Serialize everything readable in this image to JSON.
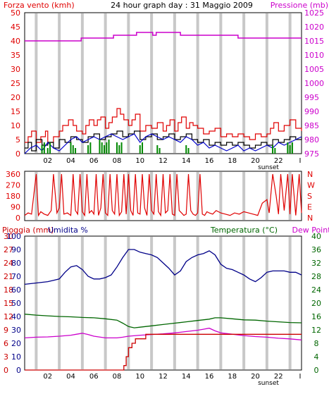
{
  "page": {
    "bg": "#ffffff",
    "plot_bg": "#ffffff",
    "frame_color": "#000000",
    "vgrid_color": "#c8c8c8"
  },
  "chart_data": [
    {
      "id": "wind-pressure",
      "type": "line",
      "title": "24 hour graph day : 31 Maggio 2009",
      "left_label": "Forza vento (kmh)",
      "right_label": "Pressione (mb)",
      "left_color": "#e00000",
      "right_color": "#cc00cc",
      "left_ylim": [
        0,
        50
      ],
      "left_ticks": [
        "0",
        "5",
        "10",
        "15",
        "20",
        "25",
        "30",
        "35",
        "40",
        "45",
        "50"
      ],
      "right_ylim": [
        975,
        1025
      ],
      "right_ticks": [
        "975",
        "980",
        "985",
        "990",
        "995",
        "1000",
        "1005",
        "1010",
        "1015",
        "1020",
        "1025"
      ],
      "x_ticks": [
        "02",
        "04",
        "06",
        "08",
        "10",
        "12",
        "14",
        "16",
        "18",
        "20",
        "22",
        "I"
      ],
      "x_annotation": "sunset",
      "grid": "vertical",
      "series": [
        {
          "key": "gust",
          "axis": "left",
          "color": "#e00000",
          "style": "step",
          "x": [
            0,
            0.3,
            0.6,
            1.0,
            1.4,
            1.8,
            2.0,
            2.5,
            3.0,
            3.3,
            3.8,
            4.2,
            4.5,
            5.0,
            5.3,
            5.6,
            6.0,
            6.3,
            6.6,
            7.0,
            7.3,
            7.6,
            8.0,
            8.3,
            8.6,
            9.0,
            9.3,
            9.6,
            10.0,
            10.5,
            11.0,
            11.5,
            12.0,
            12.3,
            12.6,
            13.0,
            13.3,
            13.6,
            14.0,
            14.3,
            14.6,
            15.0,
            15.5,
            16.0,
            16.5,
            17.0,
            17.5,
            18.0,
            18.5,
            19.0,
            19.5,
            20.0,
            20.5,
            21.0,
            21.3,
            21.6,
            22.0,
            22.5,
            23.0,
            23.5,
            24.0
          ],
          "y": [
            4,
            6,
            8,
            4,
            6,
            8,
            4,
            6,
            8,
            10,
            12,
            10,
            8,
            7,
            10,
            12,
            10,
            12,
            13,
            9,
            11,
            13,
            16,
            14,
            12,
            10,
            12,
            14,
            8,
            10,
            9,
            11,
            8,
            10,
            12,
            8,
            11,
            13,
            9,
            11,
            10,
            9,
            7,
            8,
            9,
            6,
            7,
            6,
            7,
            6,
            5,
            7,
            6,
            7,
            9,
            11,
            8,
            10,
            12,
            9,
            8
          ]
        },
        {
          "key": "wind",
          "axis": "left",
          "color": "#000000",
          "style": "step",
          "x": [
            0,
            0.3,
            0.6,
            1.0,
            1.5,
            2.0,
            2.5,
            3.0,
            3.5,
            4.0,
            4.5,
            5.0,
            5.5,
            6.0,
            6.5,
            7.0,
            7.5,
            8.0,
            8.5,
            9.0,
            9.5,
            10.0,
            10.5,
            11.0,
            11.5,
            12.0,
            12.5,
            13.0,
            13.5,
            14.0,
            14.5,
            15.0,
            15.5,
            16.0,
            16.5,
            17.0,
            17.5,
            18.0,
            18.5,
            19.0,
            19.5,
            20.0,
            20.5,
            21.0,
            21.5,
            22.0,
            22.5,
            23.0,
            23.5,
            24.0
          ],
          "y": [
            2,
            4,
            1,
            5,
            3,
            4,
            2,
            5,
            4,
            6,
            5,
            4,
            6,
            7,
            5,
            6,
            7,
            8,
            6,
            7,
            8,
            5,
            6,
            7,
            5,
            6,
            7,
            5,
            6,
            7,
            5,
            4,
            5,
            3,
            4,
            3,
            4,
            3,
            4,
            3,
            2,
            3,
            4,
            3,
            5,
            4,
            5,
            6,
            5,
            6
          ]
        },
        {
          "key": "avg",
          "axis": "left",
          "color": "#0000cc",
          "style": "line",
          "x": [
            0,
            0.5,
            1.0,
            1.5,
            2.0,
            2.5,
            3.0,
            3.5,
            4.0,
            4.5,
            5.0,
            5.5,
            6.0,
            6.5,
            7.0,
            7.5,
            8.0,
            8.5,
            9.0,
            9.5,
            10.0,
            10.5,
            11.0,
            11.5,
            12.0,
            12.5,
            13.0,
            13.5,
            14.0,
            14.5,
            15.0,
            15.5,
            16.0,
            16.5,
            17.0,
            17.5,
            18.0,
            18.5,
            19.0,
            19.5,
            20.0,
            20.5,
            21.0,
            21.5,
            22.0,
            22.5,
            23.0,
            23.5,
            24.0
          ],
          "y": [
            0,
            2,
            3,
            1,
            4,
            2,
            1,
            3,
            5,
            6,
            4,
            5,
            6,
            5,
            6,
            7,
            6,
            5,
            6,
            7,
            4,
            6,
            7,
            6,
            5,
            6,
            5,
            4,
            6,
            5,
            3,
            4,
            2,
            3,
            2,
            1,
            2,
            3,
            1,
            2,
            1,
            2,
            3,
            2,
            4,
            3,
            4,
            5,
            6
          ]
        },
        {
          "key": "calm",
          "axis": "left",
          "color": "#008800",
          "style": "bars",
          "x": [
            1.5,
            1.7,
            2.0,
            2.2,
            4.0,
            4.2,
            4.4,
            5.5,
            5.7,
            6.5,
            6.7,
            6.9,
            7.1,
            7.3,
            8.0,
            8.2,
            8.4,
            10.0,
            10.2,
            11.5,
            11.7,
            14.0,
            14.2,
            21.5,
            21.7,
            22.8,
            23.0,
            23.2
          ],
          "y": [
            3,
            4,
            2,
            4,
            4,
            3,
            2,
            3,
            4,
            5,
            4,
            3,
            4,
            5,
            4,
            3,
            4,
            3,
            4,
            3,
            2,
            3,
            2,
            3,
            2,
            4,
            3,
            4
          ]
        },
        {
          "key": "pressure",
          "axis": "right",
          "color": "#cc00cc",
          "style": "step",
          "x": [
            0,
            4.6,
            4.9,
            5.1,
            7.5,
            7.7,
            8.0,
            9.4,
            9.7,
            10.0,
            11.1,
            11.4,
            13.2,
            13.5,
            14.4,
            14.7,
            16.6,
            18.5,
            20.7,
            24.0
          ],
          "y": [
            1015,
            1015,
            1016,
            1016,
            1016,
            1017,
            1017,
            1017,
            1018,
            1018,
            1017,
            1018,
            1018,
            1017,
            1017,
            1017,
            1017,
            1016,
            1016,
            1016
          ]
        }
      ]
    },
    {
      "id": "wind-direction",
      "type": "line",
      "left_ylim": [
        0,
        360
      ],
      "left_ticks": [
        "0",
        "90",
        "180",
        "270",
        "360"
      ],
      "right_ticks": [
        "N",
        "E",
        "S",
        "W",
        "N"
      ],
      "left_color": "#e00000",
      "right_color": "#e00000",
      "grid": "vertical",
      "series": [
        {
          "key": "dir",
          "color": "#e00000",
          "x": [
            0,
            0.3,
            0.6,
            1.0,
            1.2,
            1.4,
            1.7,
            2.0,
            2.3,
            2.5,
            2.8,
            3.0,
            3.2,
            3.4,
            3.7,
            4.0,
            4.2,
            4.4,
            4.6,
            4.8,
            5.0,
            5.2,
            5.4,
            5.6,
            5.8,
            6.0,
            6.2,
            6.4,
            6.6,
            6.8,
            7.0,
            7.2,
            7.4,
            7.6,
            7.8,
            8.0,
            8.2,
            8.4,
            8.6,
            8.8,
            9.0,
            9.2,
            9.4,
            9.6,
            9.8,
            10.0,
            10.2,
            10.4,
            10.6,
            10.8,
            11.0,
            11.2,
            11.4,
            11.6,
            11.8,
            12.0,
            12.2,
            12.4,
            12.6,
            12.8,
            13.0,
            13.2,
            13.4,
            13.6,
            13.8,
            14.0,
            14.2,
            14.4,
            14.6,
            14.8,
            15.0,
            15.2,
            15.4,
            15.6,
            15.8,
            16.0,
            16.3,
            16.6,
            17.0,
            17.4,
            17.8,
            18.2,
            18.6,
            19.0,
            19.4,
            19.8,
            20.2,
            20.6,
            21.0,
            21.2,
            21.5,
            21.8,
            22.0,
            22.2,
            22.5,
            22.8,
            23.0,
            23.2,
            23.5,
            23.8,
            24.0
          ],
          "y": [
            20,
            40,
            30,
            360,
            20,
            50,
            30,
            20,
            60,
            360,
            40,
            80,
            360,
            30,
            40,
            20,
            360,
            60,
            30,
            360,
            50,
            20,
            360,
            40,
            60,
            30,
            360,
            20,
            80,
            360,
            40,
            20,
            360,
            60,
            30,
            360,
            20,
            50,
            360,
            30,
            360,
            60,
            20,
            360,
            40,
            30,
            360,
            80,
            20,
            360,
            60,
            30,
            360,
            50,
            20,
            360,
            40,
            60,
            360,
            30,
            20,
            360,
            60,
            40,
            20,
            30,
            360,
            60,
            30,
            20,
            40,
            360,
            30,
            20,
            50,
            40,
            30,
            60,
            40,
            30,
            20,
            40,
            30,
            50,
            40,
            30,
            20,
            120,
            150,
            40,
            360,
            180,
            30,
            360,
            60,
            360,
            30,
            360,
            20,
            360,
            40
          ]
        }
      ]
    },
    {
      "id": "rain-humidity-temp",
      "type": "line",
      "labels": {
        "rain": "Pioggia (mm)",
        "humidity": "Umidita %",
        "temperature": "Temperatura (°C)",
        "dewpoint": "Dew Point"
      },
      "rain_color": "#cc0000",
      "humidity_color": "#000088",
      "temp_color": "#006600",
      "dew_color": "#cc00cc",
      "rain_ylim": [
        0,
        30
      ],
      "rain_ticks": [
        "0",
        "3",
        "6",
        "9",
        "12",
        "15",
        "18",
        "21",
        "24",
        "27",
        "30"
      ],
      "humidity_ylim": [
        0,
        100
      ],
      "humidity_ticks": [
        "0",
        "10",
        "20",
        "30",
        "40",
        "50",
        "60",
        "70",
        "80",
        "90",
        "100"
      ],
      "temp_ylim": [
        0,
        40
      ],
      "temp_ticks": [
        "0",
        "4",
        "8",
        "12",
        "16",
        "20",
        "24",
        "28",
        "32",
        "36",
        "40"
      ],
      "x_ticks": [
        "02",
        "04",
        "06",
        "08",
        "10",
        "12",
        "14",
        "16",
        "18",
        "20",
        "22",
        "I"
      ],
      "x_annotation": "sunset",
      "grid": "vertical",
      "series": [
        {
          "key": "humidity",
          "axis": "humidity",
          "color": "#000088",
          "style": "line",
          "x": [
            0,
            1.0,
            2.0,
            2.5,
            3.0,
            3.5,
            4.0,
            4.5,
            5.0,
            5.5,
            6.0,
            6.5,
            7.0,
            7.5,
            8.0,
            8.5,
            9.0,
            9.5,
            10.0,
            10.5,
            11.0,
            11.5,
            12.0,
            12.5,
            13.0,
            13.5,
            14.0,
            14.5,
            15.0,
            15.5,
            16.0,
            16.5,
            17.0,
            17.5,
            18.0,
            18.5,
            19.0,
            19.5,
            20.0,
            20.5,
            21.0,
            21.5,
            22.0,
            22.5,
            23.0,
            23.5,
            24.0
          ],
          "y": [
            64,
            65,
            66,
            67,
            68,
            73,
            77,
            78,
            75,
            70,
            68,
            68,
            69,
            71,
            77,
            84,
            90,
            90,
            88,
            87,
            86,
            84,
            80,
            76,
            71,
            74,
            81,
            84,
            86,
            87,
            89,
            86,
            79,
            76,
            75,
            73,
            71,
            68,
            66,
            69,
            73,
            74,
            74,
            74,
            73,
            73,
            71
          ]
        },
        {
          "key": "temperature",
          "axis": "temp",
          "color": "#006600",
          "style": "line",
          "x": [
            0,
            1.0,
            2.0,
            3.0,
            4.0,
            5.0,
            6.0,
            7.0,
            8.0,
            8.5,
            9.0,
            9.5,
            10.0,
            11.0,
            12.0,
            13.0,
            14.0,
            15.0,
            16.0,
            16.5,
            17.0,
            18.0,
            19.0,
            20.0,
            21.0,
            22.0,
            23.0,
            24.0
          ],
          "y": [
            16.7,
            16.4,
            16.2,
            16.0,
            15.9,
            15.7,
            15.6,
            15.3,
            14.9,
            14.0,
            13.0,
            12.6,
            12.8,
            13.2,
            13.6,
            14.0,
            14.4,
            14.8,
            15.2,
            15.6,
            15.6,
            15.3,
            15.0,
            14.9,
            14.6,
            14.4,
            14.2,
            14.1
          ]
        },
        {
          "key": "dewpoint",
          "axis": "temp",
          "color": "#cc00cc",
          "style": "line",
          "x": [
            0,
            1.0,
            2.0,
            3.0,
            4.0,
            4.5,
            5.0,
            5.5,
            6.0,
            7.0,
            8.0,
            8.5,
            9.0,
            10.0,
            11.0,
            12.0,
            13.0,
            14.0,
            15.0,
            15.5,
            16.0,
            16.5,
            17.0,
            18.0,
            19.0,
            20.0,
            21.0,
            22.0,
            23.0,
            24.0
          ],
          "y": [
            9.6,
            9.8,
            9.9,
            10.1,
            10.4,
            10.7,
            11.0,
            10.6,
            10.1,
            9.6,
            9.6,
            9.8,
            10.1,
            10.4,
            10.6,
            10.8,
            11.1,
            11.5,
            11.9,
            12.2,
            12.5,
            11.7,
            11.1,
            10.7,
            10.3,
            10.0,
            9.8,
            9.5,
            9.3,
            9.0
          ]
        },
        {
          "key": "rain",
          "axis": "rain",
          "color": "#cc0000",
          "style": "step",
          "x": [
            0,
            8.4,
            8.6,
            8.8,
            9.0,
            9.3,
            9.6,
            10.1,
            10.5,
            24.0
          ],
          "y": [
            0,
            0,
            1.0,
            3.0,
            5.0,
            6.0,
            7.0,
            7.0,
            8.0,
            8.0
          ]
        }
      ]
    }
  ]
}
